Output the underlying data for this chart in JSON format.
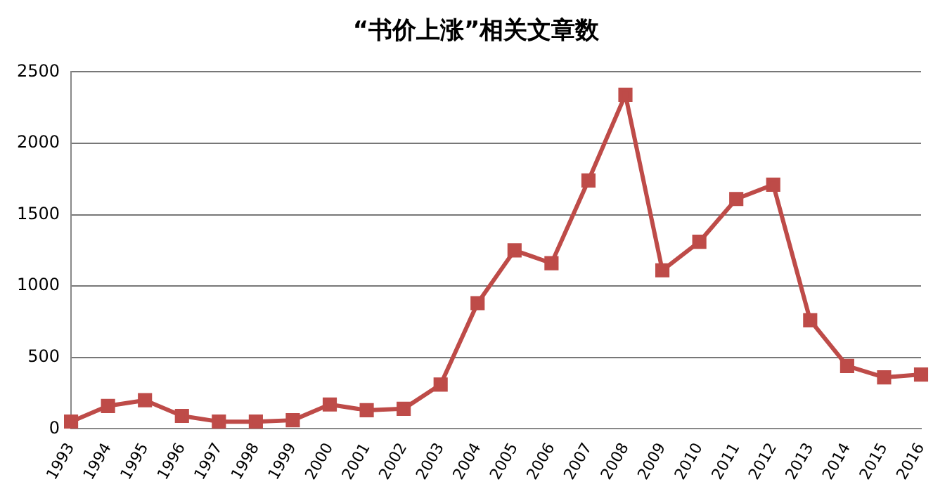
{
  "chart_data": {
    "type": "line",
    "title": "“书价上涨”相关文章数",
    "categories": [
      "1993",
      "1994",
      "1995",
      "1996",
      "1997",
      "1998",
      "1999",
      "2000",
      "2001",
      "2002",
      "2003",
      "2004",
      "2005",
      "2006",
      "2007",
      "2008",
      "2009",
      "2010",
      "2011",
      "2012",
      "2013",
      "2014",
      "2015",
      "2016"
    ],
    "series": [
      {
        "color": "#be4b48",
        "values": [
          50,
          160,
          200,
          90,
          50,
          50,
          60,
          170,
          130,
          140,
          310,
          880,
          1250,
          1160,
          1740,
          2340,
          1110,
          1310,
          1610,
          1710,
          760,
          440,
          360,
          380
        ]
      }
    ],
    "ylim": [
      0,
      2500
    ],
    "yticks": [
      0,
      500,
      1000,
      1500,
      2000,
      2500
    ],
    "grid": "y",
    "legend": false,
    "marker": "square",
    "line_style": "solid"
  }
}
